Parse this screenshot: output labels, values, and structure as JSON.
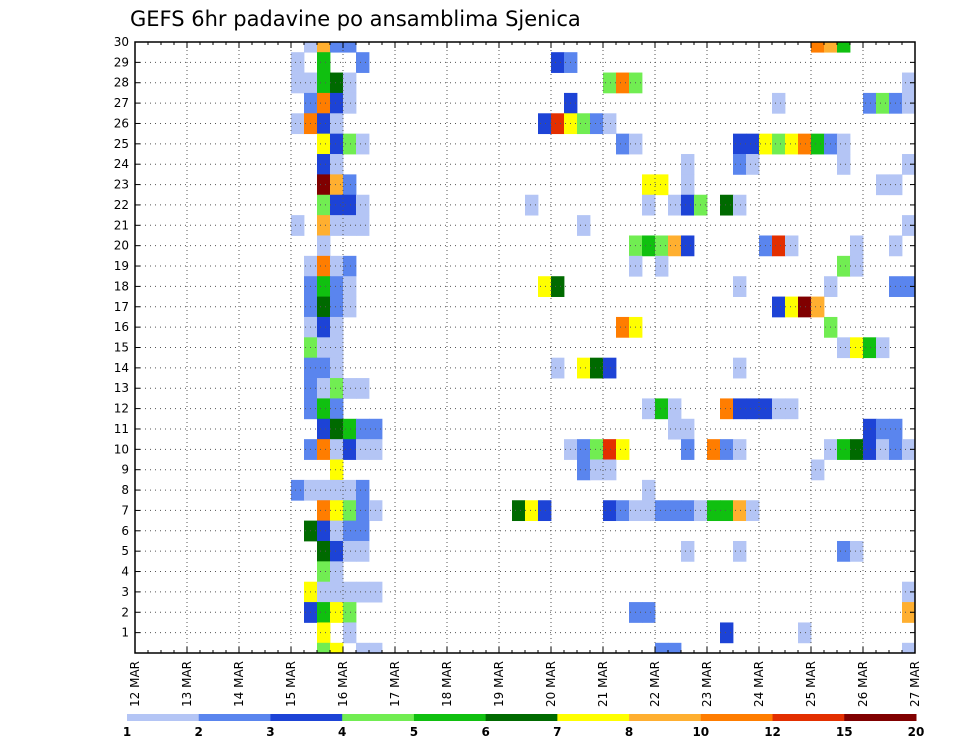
{
  "chart_data": {
    "type": "heatmap",
    "title": "GEFS 6hr padavine po ansamblima Sjenica",
    "xlabel": "",
    "ylabel": "",
    "x_ticks": [
      "12 MAR",
      "13 MAR",
      "14 MAR",
      "15 MAR",
      "16 MAR",
      "17 MAR",
      "18 MAR",
      "19 MAR",
      "20 MAR",
      "21 MAR",
      "22 MAR",
      "23 MAR",
      "24 MAR",
      "25 MAR",
      "26 MAR",
      "27 MAR"
    ],
    "y_ticks": [
      1,
      2,
      3,
      4,
      5,
      6,
      7,
      8,
      9,
      10,
      11,
      12,
      13,
      14,
      15,
      16,
      17,
      18,
      19,
      20,
      21,
      22,
      23,
      24,
      25,
      26,
      27,
      28,
      29,
      30
    ],
    "xlim": [
      0,
      60
    ],
    "ylim": [
      0,
      30
    ],
    "grid": true,
    "colorbar": {
      "labels": [
        "1",
        "2",
        "3",
        "4",
        "5",
        "6",
        "7",
        "8",
        "10",
        "12",
        "15",
        "20"
      ],
      "colors": [
        "#b4c5f5",
        "#5a85ee",
        "#1d43d6",
        "#71ed52",
        "#10c010",
        "#006a00",
        "#ffff00",
        "#ffaf30",
        "#ff7d00",
        "#e32f00",
        "#800000"
      ]
    },
    "level_colors": {
      "1": "#b4c5f5",
      "2": "#5a85ee",
      "3": "#1d43d6",
      "4": "#71ed52",
      "5": "#10c010",
      "6": "#006a00",
      "7": "#ffff00",
      "8": "#ffaf30",
      "9": "#ff7d00",
      "10": "#e32f00",
      "11": "#800000"
    },
    "note": "cells: [time_index, ensemble_member, color_level]",
    "cells": [
      [
        13,
        30,
        1
      ],
      [
        14,
        30,
        8
      ],
      [
        15,
        30,
        2
      ],
      [
        16,
        30,
        2
      ],
      [
        52,
        30,
        9
      ],
      [
        53,
        30,
        8
      ],
      [
        54,
        30,
        5
      ],
      [
        12,
        29,
        1
      ],
      [
        14,
        29,
        5
      ],
      [
        17,
        29,
        2
      ],
      [
        32,
        29,
        3
      ],
      [
        33,
        29,
        2
      ],
      [
        12,
        28,
        1
      ],
      [
        13,
        28,
        1
      ],
      [
        14,
        28,
        5
      ],
      [
        15,
        28,
        6
      ],
      [
        16,
        28,
        1
      ],
      [
        36,
        28,
        4
      ],
      [
        37,
        28,
        9
      ],
      [
        38,
        28,
        4
      ],
      [
        59,
        28,
        1
      ],
      [
        13,
        27,
        2
      ],
      [
        14,
        27,
        9
      ],
      [
        15,
        27,
        3
      ],
      [
        16,
        27,
        1
      ],
      [
        33,
        27,
        3
      ],
      [
        49,
        27,
        1
      ],
      [
        56,
        27,
        2
      ],
      [
        57,
        27,
        4
      ],
      [
        58,
        27,
        2
      ],
      [
        59,
        27,
        1
      ],
      [
        60,
        27,
        2
      ],
      [
        12,
        26,
        1
      ],
      [
        13,
        26,
        9
      ],
      [
        14,
        26,
        3
      ],
      [
        15,
        26,
        1
      ],
      [
        31,
        26,
        3
      ],
      [
        32,
        26,
        10
      ],
      [
        33,
        26,
        7
      ],
      [
        34,
        26,
        4
      ],
      [
        35,
        26,
        2
      ],
      [
        36,
        26,
        1
      ],
      [
        14,
        25,
        7
      ],
      [
        15,
        25,
        3
      ],
      [
        16,
        25,
        4
      ],
      [
        17,
        25,
        1
      ],
      [
        37,
        25,
        2
      ],
      [
        38,
        25,
        1
      ],
      [
        46,
        25,
        3
      ],
      [
        47,
        25,
        3
      ],
      [
        48,
        25,
        7
      ],
      [
        49,
        25,
        4
      ],
      [
        50,
        25,
        7
      ],
      [
        51,
        25,
        9
      ],
      [
        52,
        25,
        5
      ],
      [
        53,
        25,
        2
      ],
      [
        54,
        25,
        1
      ],
      [
        14,
        24,
        3
      ],
      [
        15,
        24,
        1
      ],
      [
        42,
        24,
        1
      ],
      [
        46,
        24,
        2
      ],
      [
        47,
        24,
        1
      ],
      [
        54,
        24,
        1
      ],
      [
        59,
        24,
        1
      ],
      [
        14,
        23,
        11
      ],
      [
        15,
        23,
        8
      ],
      [
        16,
        23,
        2
      ],
      [
        39,
        23,
        7
      ],
      [
        40,
        23,
        7
      ],
      [
        42,
        23,
        1
      ],
      [
        57,
        23,
        1
      ],
      [
        58,
        23,
        1
      ],
      [
        14,
        22,
        4
      ],
      [
        15,
        22,
        3
      ],
      [
        16,
        22,
        3
      ],
      [
        17,
        22,
        1
      ],
      [
        30,
        22,
        1
      ],
      [
        39,
        22,
        1
      ],
      [
        41,
        22,
        1
      ],
      [
        42,
        22,
        3
      ],
      [
        43,
        22,
        4
      ],
      [
        45,
        22,
        6
      ],
      [
        46,
        22,
        1
      ],
      [
        12,
        21,
        1
      ],
      [
        14,
        21,
        8
      ],
      [
        15,
        21,
        1
      ],
      [
        16,
        21,
        1
      ],
      [
        17,
        21,
        1
      ],
      [
        34,
        21,
        1
      ],
      [
        59,
        21,
        1
      ],
      [
        60,
        21,
        5
      ],
      [
        14,
        20,
        1
      ],
      [
        38,
        20,
        4
      ],
      [
        39,
        20,
        5
      ],
      [
        40,
        20,
        4
      ],
      [
        41,
        20,
        8
      ],
      [
        42,
        20,
        3
      ],
      [
        48,
        20,
        2
      ],
      [
        49,
        20,
        10
      ],
      [
        50,
        20,
        1
      ],
      [
        55,
        20,
        1
      ],
      [
        58,
        20,
        1
      ],
      [
        13,
        19,
        1
      ],
      [
        14,
        19,
        9
      ],
      [
        15,
        19,
        1
      ],
      [
        16,
        19,
        2
      ],
      [
        38,
        19,
        1
      ],
      [
        40,
        19,
        1
      ],
      [
        54,
        19,
        4
      ],
      [
        55,
        19,
        1
      ],
      [
        60,
        19,
        1
      ],
      [
        13,
        18,
        2
      ],
      [
        14,
        18,
        5
      ],
      [
        15,
        18,
        2
      ],
      [
        16,
        18,
        1
      ],
      [
        31,
        18,
        7
      ],
      [
        32,
        18,
        6
      ],
      [
        46,
        18,
        1
      ],
      [
        53,
        18,
        1
      ],
      [
        58,
        18,
        2
      ],
      [
        59,
        18,
        2
      ],
      [
        13,
        17,
        2
      ],
      [
        14,
        17,
        6
      ],
      [
        15,
        17,
        2
      ],
      [
        16,
        17,
        1
      ],
      [
        49,
        17,
        3
      ],
      [
        50,
        17,
        7
      ],
      [
        51,
        17,
        11
      ],
      [
        52,
        17,
        8
      ],
      [
        13,
        16,
        1
      ],
      [
        14,
        16,
        3
      ],
      [
        15,
        16,
        1
      ],
      [
        37,
        16,
        9
      ],
      [
        38,
        16,
        7
      ],
      [
        53,
        16,
        4
      ],
      [
        13,
        15,
        4
      ],
      [
        14,
        15,
        1
      ],
      [
        15,
        15,
        1
      ],
      [
        54,
        15,
        1
      ],
      [
        55,
        15,
        7
      ],
      [
        56,
        15,
        5
      ],
      [
        57,
        15,
        1
      ],
      [
        13,
        14,
        2
      ],
      [
        14,
        14,
        2
      ],
      [
        15,
        14,
        1
      ],
      [
        32,
        14,
        1
      ],
      [
        34,
        14,
        7
      ],
      [
        35,
        14,
        6
      ],
      [
        36,
        14,
        3
      ],
      [
        46,
        14,
        1
      ],
      [
        13,
        13,
        2
      ],
      [
        14,
        13,
        1
      ],
      [
        15,
        13,
        4
      ],
      [
        16,
        13,
        1
      ],
      [
        17,
        13,
        1
      ],
      [
        13,
        12,
        2
      ],
      [
        14,
        12,
        5
      ],
      [
        15,
        12,
        2
      ],
      [
        39,
        12,
        1
      ],
      [
        40,
        12,
        5
      ],
      [
        41,
        12,
        1
      ],
      [
        45,
        12,
        9
      ],
      [
        46,
        12,
        3
      ],
      [
        47,
        12,
        3
      ],
      [
        48,
        12,
        3
      ],
      [
        49,
        12,
        1
      ],
      [
        50,
        12,
        1
      ],
      [
        14,
        11,
        3
      ],
      [
        15,
        11,
        6
      ],
      [
        16,
        11,
        5
      ],
      [
        17,
        11,
        2
      ],
      [
        18,
        11,
        2
      ],
      [
        41,
        11,
        1
      ],
      [
        42,
        11,
        1
      ],
      [
        56,
        11,
        3
      ],
      [
        57,
        11,
        2
      ],
      [
        58,
        11,
        2
      ],
      [
        13,
        10,
        2
      ],
      [
        14,
        10,
        9
      ],
      [
        15,
        10,
        1
      ],
      [
        16,
        10,
        3
      ],
      [
        17,
        10,
        1
      ],
      [
        18,
        10,
        1
      ],
      [
        33,
        10,
        1
      ],
      [
        34,
        10,
        2
      ],
      [
        35,
        10,
        4
      ],
      [
        36,
        10,
        10
      ],
      [
        37,
        10,
        7
      ],
      [
        42,
        10,
        2
      ],
      [
        44,
        10,
        9
      ],
      [
        45,
        10,
        2
      ],
      [
        46,
        10,
        1
      ],
      [
        53,
        10,
        1
      ],
      [
        54,
        10,
        5
      ],
      [
        55,
        10,
        6
      ],
      [
        56,
        10,
        3
      ],
      [
        57,
        10,
        1
      ],
      [
        58,
        10,
        2
      ],
      [
        59,
        10,
        1
      ],
      [
        15,
        9,
        7
      ],
      [
        34,
        9,
        2
      ],
      [
        35,
        9,
        1
      ],
      [
        36,
        9,
        1
      ],
      [
        52,
        9,
        1
      ],
      [
        12,
        8,
        2
      ],
      [
        13,
        8,
        1
      ],
      [
        14,
        8,
        1
      ],
      [
        15,
        8,
        1
      ],
      [
        16,
        8,
        1
      ],
      [
        17,
        8,
        2
      ],
      [
        39,
        8,
        1
      ],
      [
        14,
        7,
        9
      ],
      [
        15,
        7,
        7
      ],
      [
        16,
        7,
        4
      ],
      [
        17,
        7,
        2
      ],
      [
        18,
        7,
        1
      ],
      [
        29,
        7,
        6
      ],
      [
        30,
        7,
        7
      ],
      [
        31,
        7,
        3
      ],
      [
        36,
        7,
        3
      ],
      [
        37,
        7,
        2
      ],
      [
        38,
        7,
        1
      ],
      [
        39,
        7,
        1
      ],
      [
        40,
        7,
        2
      ],
      [
        41,
        7,
        2
      ],
      [
        42,
        7,
        2
      ],
      [
        43,
        7,
        1
      ],
      [
        44,
        7,
        5
      ],
      [
        45,
        7,
        5
      ],
      [
        46,
        7,
        8
      ],
      [
        47,
        7,
        1
      ],
      [
        13,
        6,
        6
      ],
      [
        14,
        6,
        3
      ],
      [
        15,
        6,
        1
      ],
      [
        16,
        6,
        2
      ],
      [
        17,
        6,
        2
      ],
      [
        14,
        5,
        6
      ],
      [
        15,
        5,
        3
      ],
      [
        16,
        5,
        1
      ],
      [
        17,
        5,
        1
      ],
      [
        42,
        5,
        1
      ],
      [
        46,
        5,
        1
      ],
      [
        54,
        5,
        2
      ],
      [
        55,
        5,
        1
      ],
      [
        14,
        4,
        4
      ],
      [
        15,
        4,
        1
      ],
      [
        60,
        4,
        2
      ],
      [
        13,
        3,
        7
      ],
      [
        14,
        3,
        1
      ],
      [
        15,
        3,
        1
      ],
      [
        16,
        3,
        1
      ],
      [
        17,
        3,
        1
      ],
      [
        18,
        3,
        1
      ],
      [
        59,
        3,
        1
      ],
      [
        13,
        2,
        3
      ],
      [
        14,
        2,
        5
      ],
      [
        15,
        2,
        7
      ],
      [
        16,
        2,
        4
      ],
      [
        38,
        2,
        2
      ],
      [
        39,
        2,
        2
      ],
      [
        59,
        2,
        8
      ],
      [
        60,
        2,
        6
      ],
      [
        14,
        1,
        7
      ],
      [
        16,
        1,
        1
      ],
      [
        45,
        1,
        3
      ],
      [
        51,
        1,
        1
      ],
      [
        14,
        0,
        4
      ],
      [
        15,
        0,
        7
      ],
      [
        17,
        0,
        1
      ],
      [
        18,
        0,
        1
      ],
      [
        40,
        0,
        2
      ],
      [
        41,
        0,
        2
      ],
      [
        59,
        0,
        1
      ]
    ]
  }
}
